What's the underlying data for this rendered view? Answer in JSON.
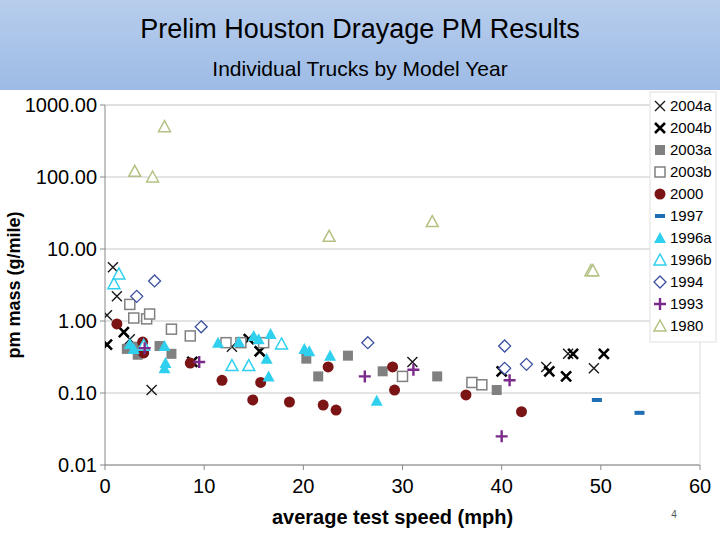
{
  "chart_data": {
    "type": "scatter",
    "title": "Prelim Houston Drayage PM Results",
    "subtitle": "Individual Trucks by Model Year",
    "x_label": "average test speed (mph)",
    "y_label": "pm mass (g/mile)",
    "page_number": "4",
    "log": "y",
    "grid": true,
    "legend": "top-right",
    "xlim": [
      0,
      60
    ],
    "xticks": [
      0,
      10,
      20,
      30,
      40,
      50,
      60
    ],
    "ylim": [
      0.01,
      1000
    ],
    "yticks": [
      {
        "value": 0.01,
        "label": "0.01"
      },
      {
        "value": 0.1,
        "label": "0.10"
      },
      {
        "value": 1,
        "label": "1.00"
      },
      {
        "value": 10,
        "label": "10.00"
      },
      {
        "value": 100,
        "label": "100.00"
      },
      {
        "value": 1000,
        "label": "1000.00"
      }
    ],
    "series": [
      {
        "name": "2004a",
        "color": "#1a1a1a",
        "marker": "x",
        "x": [
          0.8,
          1.2,
          0.2,
          2.5,
          4.7,
          12.8,
          31,
          44.5,
          46.7,
          49.3
        ],
        "values": [
          5.6,
          2.2,
          1.2,
          0.56,
          0.11,
          0.44,
          0.27,
          0.23,
          0.35,
          0.22
        ]
      },
      {
        "name": "2004b",
        "color": "#000000",
        "marker": "x-bold",
        "x": [
          0.2,
          1.9,
          8.8,
          14.5,
          15.6,
          40,
          44.8,
          46.5,
          47.2,
          50.3
        ],
        "values": [
          0.47,
          0.7,
          0.27,
          0.56,
          0.38,
          0.2,
          0.2,
          0.17,
          0.35,
          0.35
        ]
      },
      {
        "name": "2003a",
        "color": "#808080",
        "marker": "square",
        "x": [
          2.2,
          3.1,
          3.3,
          5.5,
          6.7,
          12.2,
          20.3,
          21.5,
          24.5,
          28,
          33.5,
          39.5
        ],
        "values": [
          0.41,
          0.44,
          0.34,
          0.45,
          0.35,
          0.5,
          0.3,
          0.17,
          0.33,
          0.2,
          0.17,
          0.11
        ]
      },
      {
        "name": "2003b",
        "color": "#808080",
        "marker": "square-open",
        "x": [
          2.5,
          2.9,
          4.2,
          4.5,
          6.7,
          8.6,
          12.2,
          13.7,
          16,
          30,
          37,
          38
        ],
        "values": [
          1.7,
          1.1,
          1.07,
          1.25,
          0.77,
          0.62,
          0.5,
          0.5,
          0.5,
          0.17,
          0.14,
          0.13
        ]
      },
      {
        "name": "2000",
        "color": "#7b1414",
        "marker": "circle",
        "x": [
          1.2,
          3.8,
          3.9,
          8.6,
          11.8,
          14.9,
          15.7,
          18.6,
          22,
          23.3,
          22.5,
          29,
          29.2,
          36.4,
          42
        ],
        "values": [
          0.91,
          0.51,
          0.36,
          0.26,
          0.15,
          0.08,
          0.14,
          0.075,
          0.068,
          0.058,
          0.23,
          0.23,
          0.11,
          0.094,
          0.055
        ]
      },
      {
        "name": "1997",
        "color": "#1f6db3",
        "marker": "dash",
        "x": [
          49.6,
          53.9
        ],
        "values": [
          0.08,
          0.053
        ]
      },
      {
        "name": "1996a",
        "color": "#2fd0ee",
        "marker": "triangle",
        "x": [
          2.5,
          2.9,
          6,
          6,
          6.1,
          11.4,
          13.5,
          15,
          15.5,
          16.7,
          16.3,
          16.5,
          20.1,
          20.6,
          22.7,
          27.4
        ],
        "values": [
          0.48,
          0.41,
          0.45,
          0.22,
          0.26,
          0.5,
          0.51,
          0.62,
          0.56,
          0.66,
          0.3,
          0.17,
          0.41,
          0.38,
          0.33,
          0.078
        ]
      },
      {
        "name": "1996b",
        "color": "#2fd0ee",
        "marker": "triangle-open",
        "x": [
          0.9,
          1.4,
          3.9,
          12.8,
          14.5,
          17.8
        ],
        "values": [
          3.3,
          4.5,
          0.46,
          0.24,
          0.24,
          0.48
        ]
      },
      {
        "name": "1994",
        "color": "#3a4fa0",
        "marker": "diamond-open",
        "x": [
          3.2,
          5,
          9.7,
          26.5,
          40.3,
          40.3,
          42.5
        ],
        "values": [
          2.2,
          3.6,
          0.83,
          0.5,
          0.45,
          0.22,
          0.25
        ]
      },
      {
        "name": "1993",
        "color": "#7a2a8a",
        "marker": "plus",
        "x": [
          4,
          9.5,
          26.2,
          31.1,
          40.8,
          40
        ],
        "values": [
          0.42,
          0.27,
          0.17,
          0.21,
          0.15,
          0.025
        ]
      },
      {
        "name": "1980",
        "color": "#b3c283",
        "marker": "triangle-open",
        "x": [
          6,
          3,
          4.8,
          33,
          22.6,
          49,
          49.2
        ],
        "values": [
          500,
          120,
          100,
          24,
          15,
          5,
          5
        ]
      }
    ]
  }
}
